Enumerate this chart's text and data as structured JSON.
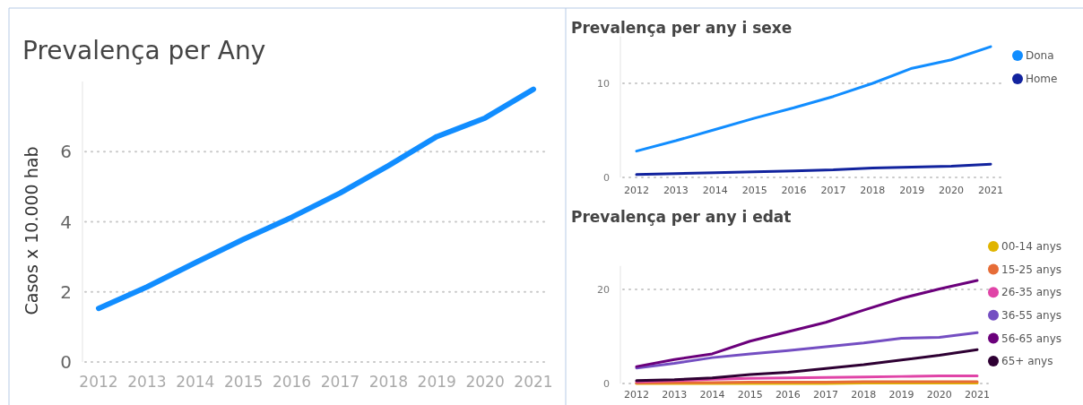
{
  "chart_data": [
    {
      "type": "line",
      "title": "Prevalença per Any",
      "ylabel": "Casos x 10.000 hab",
      "categories": [
        "2012",
        "2013",
        "2014",
        "2015",
        "2016",
        "2017",
        "2018",
        "2019",
        "2020",
        "2021"
      ],
      "ylim": [
        0,
        8
      ],
      "yticks": [
        0,
        2,
        4,
        6
      ],
      "grid": "y",
      "legend": false,
      "series": [
        {
          "color": "#118dff",
          "values": [
            1.53,
            2.14,
            2.83,
            3.5,
            4.13,
            4.82,
            5.6,
            6.43,
            6.96,
            7.78
          ]
        }
      ]
    },
    {
      "type": "line",
      "title": "Prevalença per any i sexe",
      "categories": [
        "2012",
        "2013",
        "2014",
        "2015",
        "2016",
        "2017",
        "2018",
        "2019",
        "2020",
        "2021"
      ],
      "ylim": [
        0,
        15
      ],
      "yticks": [
        0,
        10
      ],
      "grid": "y",
      "legend": "right",
      "series": [
        {
          "name": "Dona",
          "color": "#118dff",
          "values": [
            2.8,
            3.9,
            5.1,
            6.3,
            7.4,
            8.6,
            10,
            11.6,
            12.5,
            13.9
          ]
        },
        {
          "name": "Home",
          "color": "#12239e",
          "values": [
            0.3,
            0.4,
            0.5,
            0.6,
            0.7,
            0.8,
            1.0,
            1.1,
            1.2,
            1.4
          ]
        }
      ]
    },
    {
      "type": "line",
      "title": "Prevalença per any i edat",
      "categories": [
        "2012",
        "2013",
        "2014",
        "2015",
        "2016",
        "2017",
        "2018",
        "2019",
        "2020",
        "2021"
      ],
      "ylim": [
        0,
        25
      ],
      "yticks": [
        0,
        20
      ],
      "grid": "y",
      "legend": "right",
      "series": [
        {
          "name": "00-14 anys",
          "color": "#e0b400",
          "values": [
            0,
            0,
            0,
            0,
            0,
            0,
            0.1,
            0.1,
            0.1,
            0.1
          ]
        },
        {
          "name": "15-25 anys",
          "color": "#e66c37",
          "values": [
            0.1,
            0.2,
            0.2,
            0.3,
            0.3,
            0.3,
            0.4,
            0.4,
            0.4,
            0.4
          ]
        },
        {
          "name": "26-35 anys",
          "color": "#e044a7",
          "values": [
            0.4,
            0.6,
            0.9,
            1.1,
            1.2,
            1.3,
            1.4,
            1.5,
            1.6,
            1.6
          ]
        },
        {
          "name": "36-55 anys",
          "color": "#744ec2",
          "values": [
            3.3,
            4.3,
            5.5,
            6.3,
            7.0,
            7.8,
            8.6,
            9.6,
            9.8,
            10.8
          ]
        },
        {
          "name": "56-65 anys",
          "color": "#6b007b",
          "values": [
            3.6,
            5.1,
            6.3,
            9,
            11,
            13,
            15.6,
            18.1,
            20.1,
            21.9
          ]
        },
        {
          "name": "65+ anys",
          "color": "#2e0033",
          "values": [
            0.6,
            0.8,
            1.2,
            1.9,
            2.4,
            3.2,
            4.0,
            5.0,
            6.0,
            7.2
          ]
        }
      ]
    }
  ]
}
